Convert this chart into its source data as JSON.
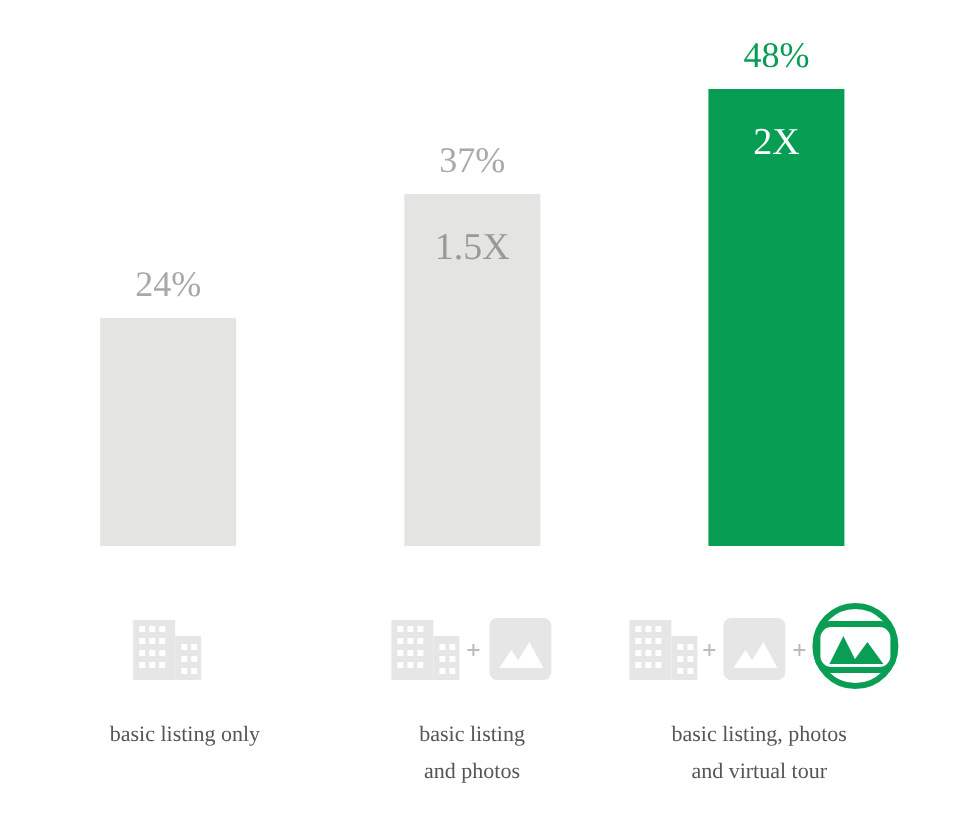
{
  "chart_data": {
    "type": "bar",
    "categories": [
      "basic listing only",
      "basic listing\nand photos",
      "basic listing, photos\nand virtual tour"
    ],
    "values": [
      24,
      37,
      48
    ],
    "colors": [
      "#e4e4e3",
      "#e4e4e3",
      "#079e54"
    ],
    "value_labels": [
      "24%",
      "37%",
      "48%"
    ],
    "annotations": [
      "1.5X",
      "2X"
    ],
    "tick_labels": "x"
  }
}
